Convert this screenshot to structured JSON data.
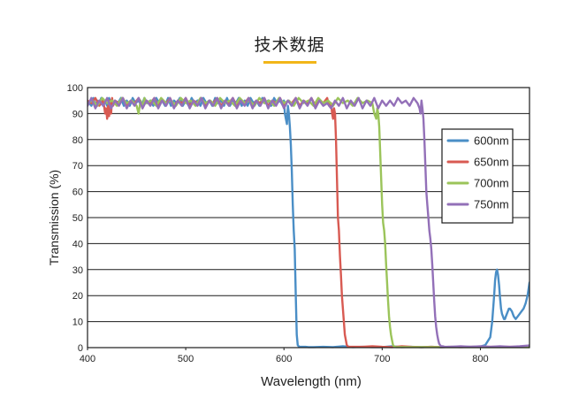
{
  "page": {
    "title": "技术数据",
    "accent_color": "#f2b61a"
  },
  "chart_data": {
    "type": "line",
    "title": "",
    "xlabel": "Wavelength (nm)",
    "ylabel": "Transmission (%)",
    "xlim": [
      400,
      850
    ],
    "ylim": [
      0,
      100
    ],
    "x_ticks": [
      400,
      500,
      600,
      700,
      800
    ],
    "y_ticks": [
      0,
      10,
      20,
      30,
      40,
      50,
      60,
      70,
      80,
      90,
      100
    ],
    "grid": "horizontal",
    "legend_position": "right",
    "series": [
      {
        "name": "600nm",
        "color": "#4a8ec6",
        "x": [
          400,
          404,
          406,
          408,
          410,
          412,
          414,
          416,
          418,
          420,
          422,
          425,
          428,
          431,
          434,
          437,
          440,
          443,
          446,
          449,
          452,
          455,
          458,
          461,
          464,
          467,
          470,
          473,
          476,
          479,
          482,
          485,
          488,
          491,
          494,
          497,
          500,
          503,
          506,
          509,
          512,
          515,
          518,
          521,
          524,
          527,
          530,
          533,
          536,
          539,
          542,
          545,
          548,
          551,
          554,
          557,
          560,
          563,
          566,
          569,
          572,
          575,
          578,
          581,
          584,
          587,
          590,
          593,
          596,
          599,
          600,
          601,
          602,
          603,
          604,
          605,
          606,
          607,
          608,
          609,
          610,
          611,
          612,
          613,
          614,
          615,
          616,
          617,
          618,
          619,
          620,
          621,
          622,
          625,
          630,
          640,
          650,
          660,
          670,
          680,
          690,
          700,
          710,
          720,
          730,
          740,
          750,
          760,
          770,
          780,
          790,
          800,
          805,
          810,
          812,
          814,
          815,
          816,
          817,
          818,
          819,
          820,
          821,
          822,
          823,
          824,
          825,
          826,
          827,
          828,
          829,
          830,
          832,
          834,
          836,
          838,
          840,
          842,
          844,
          846,
          848,
          850
        ],
        "y": [
          95,
          93,
          96,
          93,
          95,
          94,
          96,
          93,
          95,
          93,
          96,
          93,
          95,
          94,
          96,
          93,
          95,
          93,
          96,
          94,
          95,
          93,
          96,
          94,
          95,
          93,
          96,
          94,
          95,
          93,
          96,
          93,
          95,
          94,
          96,
          93,
          95,
          93,
          96,
          94,
          95,
          93,
          96,
          94,
          95,
          93,
          96,
          94,
          95,
          93,
          96,
          93,
          95,
          94,
          96,
          93,
          95,
          93,
          96,
          94,
          95,
          93,
          96,
          94,
          95,
          93,
          96,
          94,
          95,
          93,
          95,
          90,
          88,
          86,
          93,
          90,
          85,
          78,
          68,
          55,
          45,
          38,
          20,
          5,
          1,
          0.5,
          0.3,
          0.3,
          0.3,
          0.3,
          0.3,
          0.3,
          0.3,
          0.2,
          0.2,
          0.3,
          0.2,
          0.5,
          0.2,
          0.3,
          0.2,
          0.2,
          0.5,
          0.2,
          0.3,
          0.2,
          0.3,
          0.2,
          0.3,
          0.3,
          0.3,
          0.4,
          1,
          4,
          10,
          20,
          26,
          29,
          30,
          28,
          24,
          19,
          15,
          13,
          12,
          11,
          11,
          12,
          13,
          14,
          15,
          15,
          14,
          12,
          11,
          12,
          13,
          14,
          15,
          17,
          20,
          25
        ]
      },
      {
        "name": "650nm",
        "color": "#d85a52",
        "x": [
          400,
          404,
          408,
          412,
          416,
          418,
          419,
          420,
          421,
          422,
          423,
          424,
          425,
          426,
          428,
          432,
          436,
          440,
          444,
          448,
          452,
          456,
          460,
          464,
          468,
          472,
          476,
          480,
          484,
          488,
          492,
          496,
          500,
          504,
          508,
          512,
          516,
          520,
          524,
          528,
          532,
          536,
          540,
          544,
          548,
          552,
          556,
          560,
          564,
          568,
          572,
          576,
          580,
          584,
          588,
          592,
          596,
          600,
          604,
          608,
          612,
          616,
          620,
          624,
          628,
          632,
          636,
          640,
          644,
          646,
          648,
          649,
          650,
          651,
          652,
          653,
          654,
          655,
          656,
          657,
          658,
          659,
          660,
          661,
          662,
          663,
          664,
          665,
          666,
          668,
          670,
          680,
          690,
          700,
          710,
          720,
          730,
          740,
          750,
          760,
          770,
          780,
          790,
          800,
          810,
          820,
          830,
          840,
          850
        ],
        "y": [
          95,
          94,
          96,
          93,
          95,
          90,
          92,
          88,
          93,
          89,
          95,
          90,
          96,
          93,
          95,
          94,
          96,
          93,
          95,
          94,
          96,
          93,
          95,
          94,
          96,
          93,
          95,
          94,
          96,
          93,
          95,
          94,
          96,
          93,
          95,
          94,
          96,
          93,
          95,
          94,
          96,
          93,
          95,
          94,
          96,
          93,
          95,
          94,
          96,
          93,
          95,
          94,
          96,
          93,
          95,
          94,
          96,
          93,
          95,
          94,
          96,
          93,
          95,
          94,
          96,
          93,
          95,
          94,
          96,
          93,
          94,
          90,
          88,
          92,
          90,
          80,
          65,
          50,
          45,
          35,
          28,
          20,
          15,
          10,
          5,
          3,
          1,
          0.5,
          0.3,
          0.3,
          0.3,
          0.3,
          0.5,
          0.3,
          0.2,
          0.5,
          0.3,
          0.2,
          0.3,
          0.2,
          0.3,
          0.2,
          0.3,
          0.3,
          0.3,
          0.3,
          0.3,
          0.3,
          0.3
        ]
      },
      {
        "name": "700nm",
        "color": "#9bc45a",
        "x": [
          400,
          405,
          410,
          415,
          420,
          425,
          430,
          435,
          440,
          445,
          450,
          452,
          454,
          456,
          458,
          460,
          465,
          470,
          475,
          480,
          485,
          490,
          495,
          500,
          505,
          510,
          515,
          520,
          525,
          530,
          535,
          540,
          545,
          550,
          555,
          560,
          565,
          570,
          575,
          580,
          585,
          590,
          595,
          600,
          605,
          610,
          615,
          620,
          625,
          630,
          635,
          640,
          645,
          650,
          655,
          660,
          665,
          670,
          675,
          680,
          685,
          690,
          692,
          694,
          695,
          696,
          697,
          698,
          699,
          700,
          701,
          702,
          703,
          704,
          705,
          706,
          707,
          708,
          709,
          710,
          711,
          712,
          713,
          714,
          716,
          718,
          720,
          730,
          740,
          750,
          760,
          770,
          780,
          790,
          800,
          810,
          820,
          830,
          840,
          850
        ],
        "y": [
          94,
          95,
          93,
          96,
          94,
          95,
          93,
          96,
          94,
          95,
          93,
          90,
          95,
          92,
          96,
          94,
          95,
          93,
          96,
          94,
          95,
          93,
          96,
          94,
          95,
          93,
          96,
          94,
          95,
          93,
          96,
          94,
          95,
          93,
          96,
          94,
          95,
          93,
          96,
          94,
          95,
          93,
          96,
          94,
          95,
          93,
          96,
          94,
          95,
          93,
          96,
          94,
          95,
          93,
          96,
          94,
          95,
          93,
          96,
          94,
          95,
          94,
          90,
          88,
          92,
          90,
          85,
          75,
          65,
          55,
          48,
          45,
          40,
          32,
          25,
          18,
          12,
          8,
          5,
          3,
          1,
          0.5,
          0.3,
          0.2,
          0.2,
          0.2,
          0.2,
          0.2,
          0.2,
          0.2,
          0.2,
          0.2,
          0.2,
          0.2,
          0.2,
          0.2,
          0.2,
          0.2,
          0.2,
          0.2
        ]
      },
      {
        "name": "750nm",
        "color": "#9370b8",
        "x": [
          400,
          404,
          408,
          412,
          416,
          420,
          424,
          428,
          432,
          436,
          440,
          444,
          448,
          452,
          456,
          460,
          464,
          468,
          472,
          476,
          480,
          484,
          488,
          492,
          496,
          500,
          504,
          508,
          512,
          516,
          520,
          524,
          528,
          532,
          536,
          540,
          544,
          548,
          552,
          556,
          560,
          564,
          568,
          572,
          576,
          580,
          584,
          588,
          592,
          596,
          600,
          604,
          608,
          612,
          616,
          620,
          624,
          628,
          632,
          636,
          640,
          644,
          648,
          652,
          656,
          660,
          664,
          668,
          672,
          676,
          680,
          684,
          688,
          692,
          696,
          700,
          704,
          708,
          712,
          716,
          720,
          724,
          728,
          732,
          736,
          738,
          739,
          740,
          741,
          742,
          743,
          744,
          745,
          746,
          747,
          748,
          749,
          750,
          751,
          752,
          753,
          754,
          755,
          756,
          757,
          758,
          759,
          760,
          762,
          764,
          770,
          780,
          790,
          800,
          810,
          820,
          830,
          840,
          850
        ],
        "y": [
          93,
          96,
          92,
          95,
          93,
          96,
          92,
          95,
          93,
          96,
          92,
          95,
          93,
          96,
          92,
          95,
          93,
          96,
          92,
          95,
          93,
          96,
          92,
          95,
          93,
          96,
          92,
          95,
          93,
          96,
          92,
          95,
          93,
          96,
          92,
          95,
          93,
          96,
          92,
          95,
          93,
          96,
          92,
          95,
          93,
          96,
          92,
          95,
          93,
          96,
          92,
          95,
          93,
          96,
          92,
          95,
          93,
          96,
          92,
          95,
          93,
          94,
          92,
          95,
          93,
          96,
          92,
          95,
          93,
          96,
          92,
          95,
          93,
          96,
          92,
          95,
          93,
          95,
          93,
          96,
          94,
          95,
          93,
          96,
          94,
          92,
          90,
          95,
          92,
          88,
          80,
          70,
          60,
          55,
          50,
          45,
          42,
          38,
          32,
          25,
          18,
          12,
          8,
          5,
          3,
          1.5,
          1,
          0.5,
          0.5,
          0.3,
          0.3,
          0.5,
          0.3,
          0.5,
          0.3,
          0.5,
          0.3,
          0.5,
          0.8
        ]
      }
    ]
  }
}
